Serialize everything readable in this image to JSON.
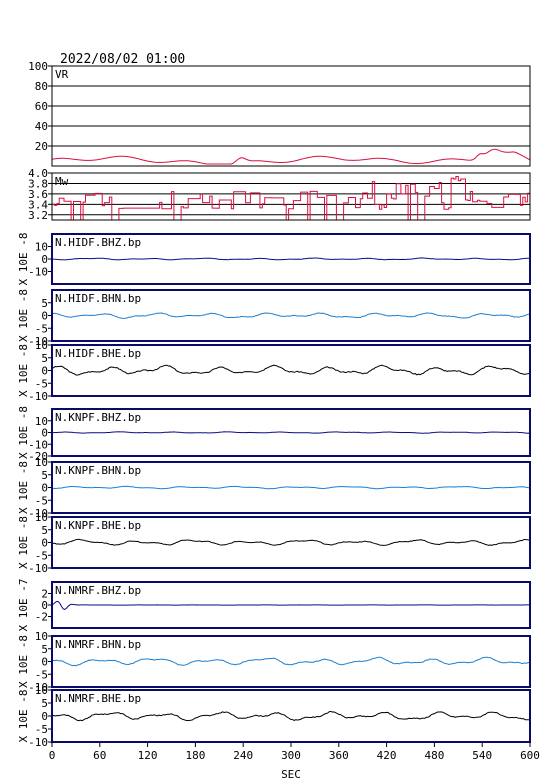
{
  "header": {
    "datetime": "2022/08/02 01:00"
  },
  "x_axis": {
    "label": "SEC",
    "ticks": [
      "0",
      "60",
      "120",
      "180",
      "240",
      "300",
      "360",
      "420",
      "480",
      "540",
      "600"
    ],
    "range": [
      0,
      600
    ]
  },
  "colors": {
    "vr": "#d8103f",
    "mw": "#d8103f",
    "dark_blue": "#0a0a8a",
    "light_blue": "#1c7fd0",
    "black": "#000000"
  },
  "chart_data": {
    "type": "line",
    "panels": [
      {
        "name": "VR",
        "panel_label": "VR",
        "scale_label": "",
        "ylim": [
          0,
          100
        ],
        "ytick_labels": [
          "20",
          "40",
          "60",
          "80",
          "100"
        ],
        "ytick_values": [
          20,
          40,
          60,
          80,
          100
        ],
        "grid": true,
        "color_key": "vr",
        "series": {
          "kind": "vr"
        }
      },
      {
        "name": "Mw",
        "panel_label": "Mw",
        "scale_label": "",
        "ylim": [
          3.1,
          4.0
        ],
        "ytick_labels": [
          "3.2",
          "3.4",
          "3.6",
          "3.8",
          "4.0"
        ],
        "ytick_values": [
          3.2,
          3.4,
          3.6,
          3.8,
          4.0
        ],
        "grid": true,
        "color_key": "mw",
        "series": {
          "kind": "mw"
        }
      },
      {
        "name": "N.HIDF.BHZ.bp",
        "panel_label": "N.HIDF.BHZ.bp",
        "scale_label": "X 10E -8",
        "ylim": [
          -20,
          20
        ],
        "ytick_labels": [
          "-10",
          "0",
          "10"
        ],
        "ytick_values": [
          -10,
          0,
          10
        ],
        "color_key": "dark_blue",
        "series": {
          "kind": "wave",
          "amp": 0.8,
          "seed": 1,
          "burst": 0
        }
      },
      {
        "name": "N.HIDF.BHN.bp",
        "panel_label": "N.HIDF.BHN.bp",
        "scale_label": "X 10E -8",
        "ylim": [
          -10,
          10
        ],
        "ytick_labels": [
          "-10",
          "-5",
          "0",
          "5"
        ],
        "ytick_values": [
          -10,
          -5,
          0,
          5
        ],
        "color_key": "light_blue",
        "series": {
          "kind": "wave",
          "amp": 1.1,
          "seed": 2,
          "burst": 0
        }
      },
      {
        "name": "N.HIDF.BHE.bp",
        "panel_label": "N.HIDF.BHE.bp",
        "scale_label": "X 10E -8",
        "ylim": [
          -10,
          10
        ],
        "ytick_labels": [
          "-10",
          "-5",
          "0",
          "5",
          "10"
        ],
        "ytick_values": [
          -10,
          -5,
          0,
          5,
          10
        ],
        "color_key": "black",
        "series": {
          "kind": "wave",
          "amp": 2.0,
          "seed": 3,
          "burst": 0
        }
      },
      {
        "name": "N.KNPF.BHZ.bp",
        "panel_label": "N.KNPF.BHZ.bp",
        "scale_label": "X 10E -8",
        "ylim": [
          -20,
          20
        ],
        "ytick_labels": [
          "-20",
          "-10",
          "0",
          "10"
        ],
        "ytick_values": [
          -20,
          -10,
          0,
          10
        ],
        "color_key": "dark_blue",
        "series": {
          "kind": "wave",
          "amp": 0.6,
          "seed": 4,
          "burst": 0
        }
      },
      {
        "name": "N.KNPF.BHN.bp",
        "panel_label": "N.KNPF.BHN.bp",
        "scale_label": "X 10E -8",
        "ylim": [
          -10,
          10
        ],
        "ytick_labels": [
          "-10",
          "-5",
          "0",
          "5",
          "10"
        ],
        "ytick_values": [
          -10,
          -5,
          0,
          5,
          10
        ],
        "color_key": "light_blue",
        "series": {
          "kind": "wave",
          "amp": 0.5,
          "seed": 5,
          "burst": 0
        }
      },
      {
        "name": "N.KNPF.BHE.bp",
        "panel_label": "N.KNPF.BHE.bp",
        "scale_label": "X 10E -8",
        "ylim": [
          -10,
          10
        ],
        "ytick_labels": [
          "-10",
          "-5",
          "0",
          "5",
          "10"
        ],
        "ytick_values": [
          -10,
          -5,
          0,
          5,
          10
        ],
        "color_key": "black",
        "series": {
          "kind": "wave",
          "amp": 1.2,
          "seed": 6,
          "burst": 0
        }
      },
      {
        "name": "N.NMRF.BHZ.bp",
        "panel_label": "N.NMRF.BHZ.bp",
        "scale_label": "X 10E -7",
        "ylim": [
          -4,
          4
        ],
        "ytick_labels": [
          "-2",
          "0",
          "2"
        ],
        "ytick_values": [
          -2,
          0,
          2
        ],
        "color_key": "dark_blue",
        "series": {
          "kind": "wave",
          "amp": 0.02,
          "seed": 7,
          "burst": 1
        }
      },
      {
        "name": "N.NMRF.BHN.bp",
        "panel_label": "N.NMRF.BHN.bp",
        "scale_label": "X 10E -8",
        "ylim": [
          -10,
          10
        ],
        "ytick_labels": [
          "-10",
          "-5",
          "0",
          "5",
          "10"
        ],
        "ytick_values": [
          -10,
          -5,
          0,
          5,
          10
        ],
        "color_key": "light_blue",
        "series": {
          "kind": "wave",
          "amp": 1.6,
          "seed": 8,
          "burst": 0
        }
      },
      {
        "name": "N.NMRF.BHE.bp",
        "panel_label": "N.NMRF.BHE.bp",
        "scale_label": "X 10E -8",
        "ylim": [
          -10,
          10
        ],
        "ytick_labels": [
          "-10",
          "-5",
          "0",
          "5",
          "10"
        ],
        "ytick_values": [
          -10,
          -5,
          0,
          5,
          10
        ],
        "color_key": "black",
        "series": {
          "kind": "wave",
          "amp": 1.8,
          "seed": 9,
          "burst": 0
        }
      }
    ]
  }
}
